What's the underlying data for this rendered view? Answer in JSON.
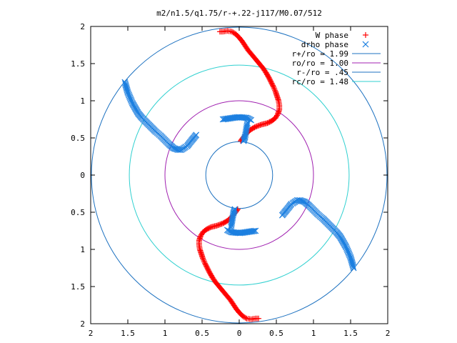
{
  "chart_data": {
    "type": "scatter",
    "title": "m2/n1.5/q1.75/r-+.22-j117/M0.07/512",
    "xlabel": "",
    "ylabel": "",
    "xlim": [
      -2,
      2
    ],
    "ylim": [
      -2,
      2
    ],
    "x_ticks": [
      -2,
      -1.5,
      -1,
      -0.5,
      0,
      0.5,
      1,
      1.5,
      2
    ],
    "y_ticks": [
      -2,
      -1.5,
      -1,
      -0.5,
      0,
      0.5,
      1,
      1.5,
      2
    ],
    "x_tick_labels": [
      "2",
      "1.5",
      "1",
      "0.5",
      "0",
      "0.5",
      "1",
      "1.5",
      "2"
    ],
    "y_tick_labels": [
      "2",
      "1.5",
      "1",
      "0.5",
      "0",
      "0.5",
      "1",
      "1.5",
      "2"
    ],
    "grid": false,
    "legend_position": "top-right",
    "series": [
      {
        "name": "W phase",
        "marker": "+",
        "color": "#ff0000",
        "points": [
          [
            0.02,
            0.46
          ],
          [
            0.05,
            0.5
          ],
          [
            0.1,
            0.56
          ],
          [
            0.15,
            0.61
          ],
          [
            0.22,
            0.65
          ],
          [
            0.3,
            0.68
          ],
          [
            0.38,
            0.7
          ],
          [
            0.44,
            0.73
          ],
          [
            0.49,
            0.77
          ],
          [
            0.52,
            0.82
          ],
          [
            0.54,
            0.88
          ],
          [
            0.54,
            0.94
          ],
          [
            0.53,
            1.0
          ],
          [
            0.51,
            1.06
          ],
          [
            0.49,
            1.12
          ],
          [
            0.46,
            1.19
          ],
          [
            0.43,
            1.25
          ],
          [
            0.4,
            1.31
          ],
          [
            0.36,
            1.38
          ],
          [
            0.32,
            1.44
          ],
          [
            0.27,
            1.5
          ],
          [
            0.22,
            1.56
          ],
          [
            0.17,
            1.62
          ],
          [
            0.12,
            1.68
          ],
          [
            0.08,
            1.74
          ],
          [
            0.04,
            1.8
          ],
          [
            0.0,
            1.85
          ],
          [
            -0.05,
            1.9
          ],
          [
            -0.1,
            1.93
          ],
          [
            -0.16,
            1.94
          ],
          [
            -0.22,
            1.93
          ],
          [
            -0.26,
            1.93
          ],
          [
            -0.02,
            -0.46
          ],
          [
            -0.05,
            -0.5
          ],
          [
            -0.1,
            -0.56
          ],
          [
            -0.15,
            -0.61
          ],
          [
            -0.22,
            -0.65
          ],
          [
            -0.3,
            -0.68
          ],
          [
            -0.38,
            -0.7
          ],
          [
            -0.44,
            -0.73
          ],
          [
            -0.49,
            -0.77
          ],
          [
            -0.52,
            -0.82
          ],
          [
            -0.54,
            -0.88
          ],
          [
            -0.54,
            -0.94
          ],
          [
            -0.53,
            -1.0
          ],
          [
            -0.51,
            -1.06
          ],
          [
            -0.49,
            -1.12
          ],
          [
            -0.46,
            -1.19
          ],
          [
            -0.43,
            -1.25
          ],
          [
            -0.4,
            -1.31
          ],
          [
            -0.36,
            -1.38
          ],
          [
            -0.32,
            -1.44
          ],
          [
            -0.27,
            -1.5
          ],
          [
            -0.22,
            -1.56
          ],
          [
            -0.17,
            -1.62
          ],
          [
            -0.12,
            -1.68
          ],
          [
            -0.08,
            -1.74
          ],
          [
            -0.04,
            -1.8
          ],
          [
            0.0,
            -1.85
          ],
          [
            0.05,
            -1.9
          ],
          [
            0.1,
            -1.93
          ],
          [
            0.16,
            -1.94
          ],
          [
            0.22,
            -1.93
          ],
          [
            0.26,
            -1.93
          ]
        ]
      },
      {
        "name": "drho phase",
        "marker": "x",
        "color": "#1c7fe0",
        "points": [
          [
            -1.54,
            1.25
          ],
          [
            -1.52,
            1.18
          ],
          [
            -1.5,
            1.11
          ],
          [
            -1.47,
            1.04
          ],
          [
            -1.44,
            0.97
          ],
          [
            -1.4,
            0.9
          ],
          [
            -1.36,
            0.83
          ],
          [
            -1.31,
            0.77
          ],
          [
            -1.25,
            0.71
          ],
          [
            -1.19,
            0.65
          ],
          [
            -1.13,
            0.59
          ],
          [
            -1.06,
            0.53
          ],
          [
            -1.0,
            0.47
          ],
          [
            -0.94,
            0.41
          ],
          [
            -0.88,
            0.36
          ],
          [
            -0.82,
            0.34
          ],
          [
            -0.78,
            0.34
          ],
          [
            -0.75,
            0.36
          ],
          [
            -0.72,
            0.38
          ],
          [
            1.54,
            -1.25
          ],
          [
            1.52,
            -1.18
          ],
          [
            1.5,
            -1.11
          ],
          [
            1.47,
            -1.04
          ],
          [
            1.44,
            -0.97
          ],
          [
            1.4,
            -0.9
          ],
          [
            1.36,
            -0.83
          ],
          [
            1.31,
            -0.77
          ],
          [
            1.25,
            -0.71
          ],
          [
            1.19,
            -0.65
          ],
          [
            1.13,
            -0.59
          ],
          [
            1.06,
            -0.53
          ],
          [
            1.0,
            -0.47
          ],
          [
            0.94,
            -0.41
          ],
          [
            0.88,
            -0.36
          ],
          [
            0.82,
            -0.34
          ],
          [
            0.78,
            -0.34
          ],
          [
            0.75,
            -0.36
          ],
          [
            0.72,
            -0.38
          ],
          [
            0.06,
            0.46
          ],
          [
            0.08,
            0.52
          ],
          [
            0.09,
            0.58
          ],
          [
            0.1,
            0.64
          ],
          [
            0.11,
            0.7
          ],
          [
            -0.06,
            -0.46
          ],
          [
            -0.08,
            -0.52
          ],
          [
            -0.09,
            -0.58
          ],
          [
            -0.1,
            -0.64
          ],
          [
            -0.11,
            -0.7
          ],
          [
            -0.7,
            0.39
          ],
          [
            -0.67,
            0.43
          ],
          [
            -0.58,
            0.54
          ],
          [
            -0.22,
            0.75
          ],
          [
            -0.01,
            0.78
          ],
          [
            0.1,
            0.77
          ],
          [
            0.16,
            0.74
          ],
          [
            0.7,
            -0.39
          ],
          [
            0.67,
            -0.43
          ],
          [
            0.58,
            -0.54
          ],
          [
            0.22,
            -0.75
          ],
          [
            0.01,
            -0.78
          ],
          [
            -0.1,
            -0.77
          ],
          [
            -0.16,
            -0.74
          ]
        ]
      }
    ],
    "circles": [
      {
        "name": "r+/ro = 1.99",
        "radius": 1.99,
        "color": "#1c71c0"
      },
      {
        "name": "ro/ro = 1.00",
        "radius": 1.0,
        "color": "#a020b0"
      },
      {
        "name": "r-/ro = .45",
        "radius": 0.45,
        "color": "#1c71c0"
      },
      {
        "name": "rc/ro = 1.48",
        "radius": 1.48,
        "color": "#30d0d0"
      }
    ]
  }
}
